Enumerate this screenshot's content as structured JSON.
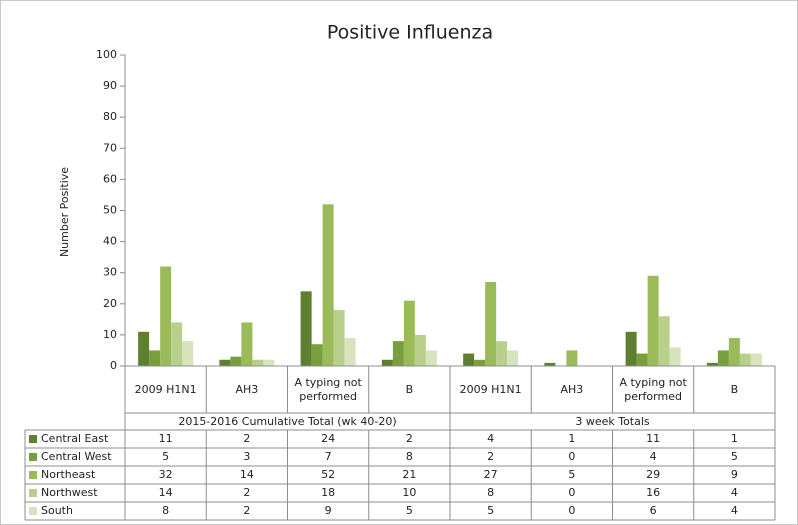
{
  "chart_data": {
    "type": "bar",
    "title": "Positive Influenza",
    "y_label": "Number Positive",
    "groups": [
      "2015-2016 Cumulative Total (wk 40-20)",
      "3 week Totals"
    ],
    "categories": [
      "2009 H1N1",
      "AH3",
      "A typing not performed",
      "B",
      "2009 H1N1",
      "AH3",
      "A typing not performed",
      "B"
    ],
    "series": [
      {
        "name": "Central East",
        "color": "#5f7f30",
        "values": [
          11,
          2,
          24,
          2,
          4,
          1,
          11,
          1
        ]
      },
      {
        "name": "Central West",
        "color": "#789f3c",
        "values": [
          5,
          3,
          7,
          8,
          2,
          0,
          4,
          5
        ]
      },
      {
        "name": "Northeast",
        "color": "#9bbb59",
        "values": [
          32,
          14,
          52,
          21,
          27,
          5,
          29,
          9
        ]
      },
      {
        "name": "Northwest",
        "color": "#b9d08c",
        "values": [
          14,
          2,
          18,
          10,
          8,
          0,
          16,
          4
        ]
      },
      {
        "name": "South",
        "color": "#d6e3bc",
        "values": [
          8,
          2,
          9,
          5,
          5,
          0,
          6,
          4
        ]
      }
    ],
    "ylim": [
      0,
      100
    ],
    "yticks": [
      0,
      10,
      20,
      30,
      40,
      50,
      60,
      70,
      80,
      90,
      100
    ],
    "grid": false
  }
}
